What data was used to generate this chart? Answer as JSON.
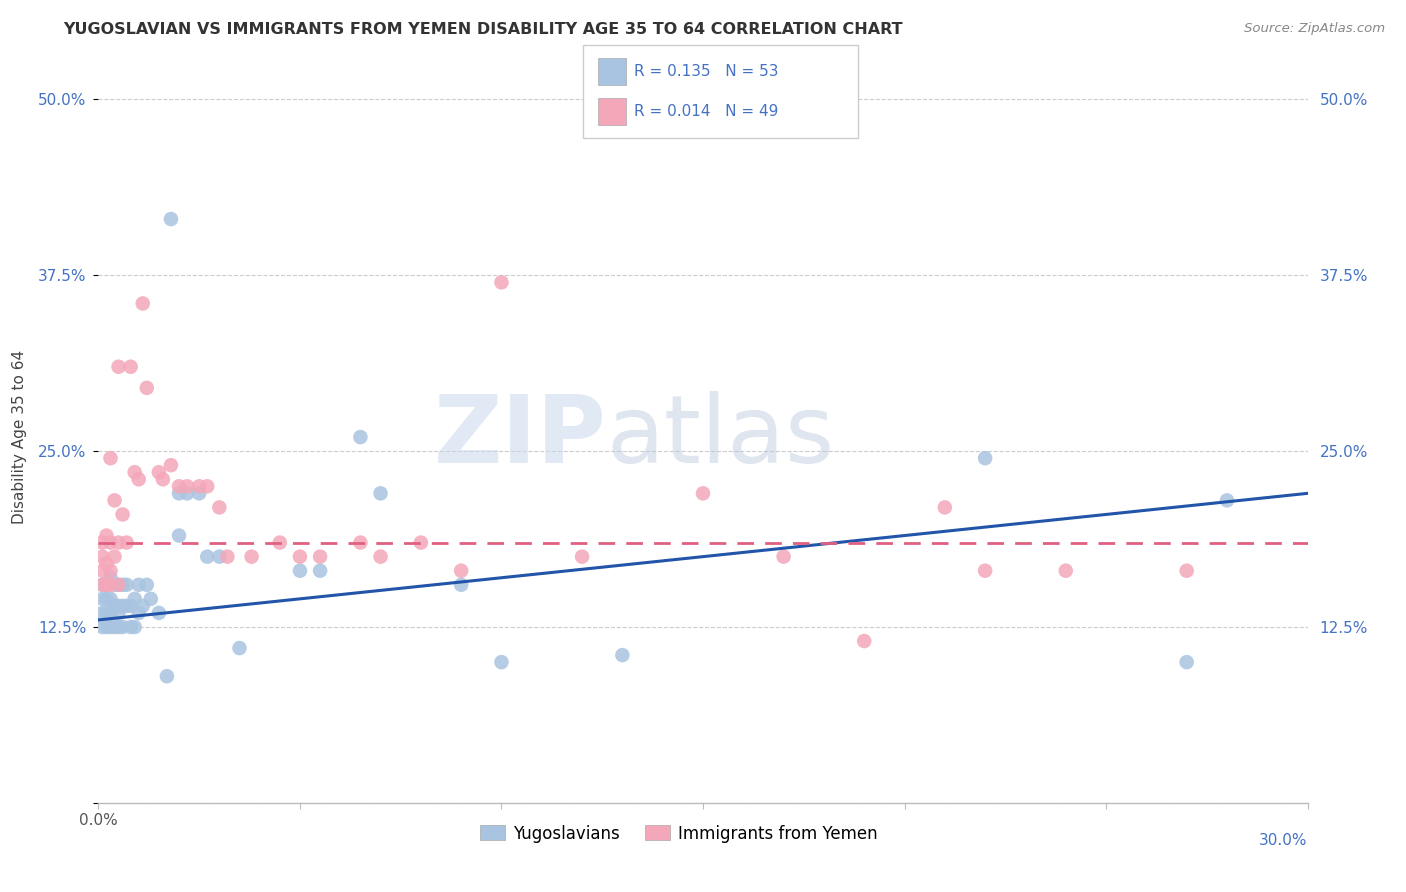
{
  "title": "YUGOSLAVIAN VS IMMIGRANTS FROM YEMEN DISABILITY AGE 35 TO 64 CORRELATION CHART",
  "source": "Source: ZipAtlas.com",
  "ylabel": "Disability Age 35 to 64",
  "ytick_labels": [
    "",
    "12.5%",
    "25.0%",
    "37.5%",
    "50.0%"
  ],
  "ytick_values": [
    0,
    0.125,
    0.25,
    0.375,
    0.5
  ],
  "xlim": [
    0,
    0.3
  ],
  "ylim": [
    0,
    0.52
  ],
  "r_blue": 0.135,
  "n_blue": 53,
  "r_pink": 0.014,
  "n_pink": 49,
  "blue_color": "#a8c4e0",
  "pink_color": "#f4a7b9",
  "line_blue": "#2255aa",
  "line_pink": "#e06080",
  "legend_label_blue": "Yugoslavians",
  "legend_label_pink": "Immigrants from Yemen",
  "blue_trend_start": 0.13,
  "blue_trend_end": 0.22,
  "pink_trend_start": 0.185,
  "pink_trend_end": 0.185,
  "blue_x": [
    0.001,
    0.001,
    0.001,
    0.001,
    0.002,
    0.002,
    0.002,
    0.002,
    0.003,
    0.003,
    0.003,
    0.003,
    0.004,
    0.004,
    0.004,
    0.005,
    0.005,
    0.005,
    0.005,
    0.006,
    0.006,
    0.006,
    0.007,
    0.007,
    0.008,
    0.008,
    0.009,
    0.009,
    0.01,
    0.01,
    0.011,
    0.012,
    0.013,
    0.015,
    0.017,
    0.018,
    0.02,
    0.02,
    0.022,
    0.025,
    0.027,
    0.03,
    0.035,
    0.05,
    0.055,
    0.065,
    0.07,
    0.09,
    0.1,
    0.13,
    0.22,
    0.27,
    0.28
  ],
  "blue_y": [
    0.155,
    0.145,
    0.135,
    0.125,
    0.155,
    0.145,
    0.135,
    0.125,
    0.16,
    0.145,
    0.135,
    0.125,
    0.155,
    0.14,
    0.125,
    0.155,
    0.14,
    0.135,
    0.125,
    0.155,
    0.14,
    0.125,
    0.155,
    0.14,
    0.14,
    0.125,
    0.145,
    0.125,
    0.155,
    0.135,
    0.14,
    0.155,
    0.145,
    0.135,
    0.09,
    0.415,
    0.22,
    0.19,
    0.22,
    0.22,
    0.175,
    0.175,
    0.11,
    0.165,
    0.165,
    0.26,
    0.22,
    0.155,
    0.1,
    0.105,
    0.245,
    0.1,
    0.215
  ],
  "pink_x": [
    0.001,
    0.001,
    0.001,
    0.002,
    0.002,
    0.003,
    0.003,
    0.003,
    0.004,
    0.004,
    0.005,
    0.005,
    0.006,
    0.007,
    0.008,
    0.009,
    0.01,
    0.011,
    0.012,
    0.015,
    0.016,
    0.018,
    0.02,
    0.022,
    0.025,
    0.027,
    0.03,
    0.032,
    0.038,
    0.045,
    0.05,
    0.055,
    0.065,
    0.07,
    0.08,
    0.09,
    0.1,
    0.12,
    0.15,
    0.17,
    0.19,
    0.21,
    0.22,
    0.24,
    0.27,
    0.001,
    0.002,
    0.003,
    0.005
  ],
  "pink_y": [
    0.185,
    0.175,
    0.165,
    0.19,
    0.17,
    0.245,
    0.185,
    0.165,
    0.215,
    0.175,
    0.31,
    0.185,
    0.205,
    0.185,
    0.31,
    0.235,
    0.23,
    0.355,
    0.295,
    0.235,
    0.23,
    0.24,
    0.225,
    0.225,
    0.225,
    0.225,
    0.21,
    0.175,
    0.175,
    0.185,
    0.175,
    0.175,
    0.185,
    0.175,
    0.185,
    0.165,
    0.37,
    0.175,
    0.22,
    0.175,
    0.115,
    0.21,
    0.165,
    0.165,
    0.165,
    0.155,
    0.155,
    0.155,
    0.155
  ]
}
